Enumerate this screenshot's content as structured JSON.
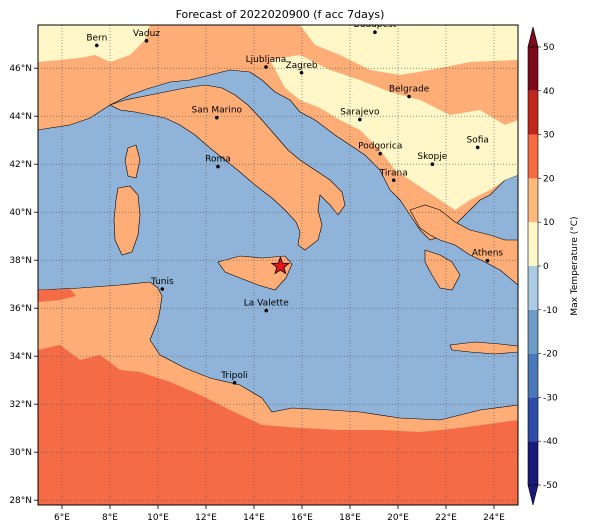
{
  "title": "Forecast of 2022020900 (f acc 7days)",
  "map": {
    "lon_range": [
      5,
      25
    ],
    "lat_range": [
      27.8,
      47.8
    ],
    "x_ticks": [
      6,
      8,
      10,
      12,
      14,
      16,
      18,
      20,
      22,
      24
    ],
    "y_ticks": [
      28,
      30,
      32,
      34,
      36,
      38,
      40,
      42,
      44,
      46
    ],
    "x_tick_labels": [
      "6°E",
      "8°E",
      "10°E",
      "12°E",
      "14°E",
      "16°E",
      "18°E",
      "20°E",
      "22°E",
      "24°E"
    ],
    "y_tick_labels": [
      "28°N",
      "30°N",
      "32°N",
      "34°N",
      "36°N",
      "38°N",
      "40°N",
      "42°N",
      "44°N",
      "46°N"
    ],
    "grid": true,
    "sea_color": "#8fb3d9",
    "cities": [
      {
        "name": "Bern",
        "lon": 7.45,
        "lat": 46.95
      },
      {
        "name": "Vaduz",
        "lon": 9.52,
        "lat": 47.14
      },
      {
        "name": "Budapest",
        "lon": 19.04,
        "lat": 47.5
      },
      {
        "name": "Ljubljana",
        "lon": 14.5,
        "lat": 46.05
      },
      {
        "name": "Zagreb",
        "lon": 15.98,
        "lat": 45.81
      },
      {
        "name": "Belgrade",
        "lon": 20.46,
        "lat": 44.82
      },
      {
        "name": "San Marino",
        "lon": 12.45,
        "lat": 43.94
      },
      {
        "name": "Sarajevo",
        "lon": 18.41,
        "lat": 43.86
      },
      {
        "name": "Sofia",
        "lon": 23.32,
        "lat": 42.7
      },
      {
        "name": "Podgorica",
        "lon": 19.26,
        "lat": 42.44
      },
      {
        "name": "Skopje",
        "lon": 21.43,
        "lat": 42.0
      },
      {
        "name": "Roma",
        "lon": 12.5,
        "lat": 41.9
      },
      {
        "name": "Tirana",
        "lon": 19.82,
        "lat": 41.33
      },
      {
        "name": "Athens",
        "lon": 23.73,
        "lat": 37.98
      },
      {
        "name": "Tunis",
        "lon": 10.18,
        "lat": 36.8
      },
      {
        "name": "La Valette",
        "lon": 14.51,
        "lat": 35.9
      },
      {
        "name": "Tripoli",
        "lon": 13.19,
        "lat": 32.89
      }
    ],
    "marker": {
      "lon": 15.1,
      "lat": 37.75,
      "color": "#e8141c",
      "shape": "star"
    }
  },
  "colorbar": {
    "label": "Max Temperature (°C)",
    "ticks": [
      "-50",
      "-40",
      "-30",
      "-20",
      "-10",
      "0",
      "10",
      "20",
      "30",
      "40",
      "50"
    ],
    "colors": [
      "#1a1a7a",
      "#2f4da8",
      "#4a78b8",
      "#6f9bc7",
      "#a9cbe4",
      "#e8f4f8",
      "#fff7c8",
      "#fdba7d",
      "#f56b3f",
      "#c2271d",
      "#7d0a1a"
    ]
  },
  "legend_colors": {
    "cold": "#fff7c8",
    "mild": "#fdad75",
    "warm": "#f46b45",
    "border": "#000000"
  }
}
